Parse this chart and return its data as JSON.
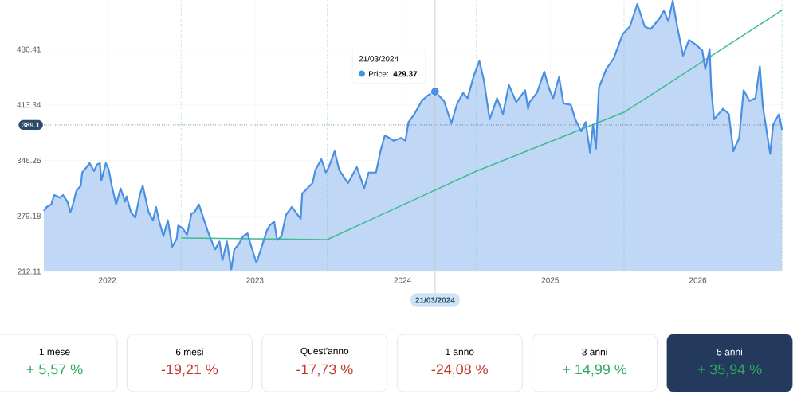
{
  "chart_data": [
    {
      "type": "area",
      "xlim": [
        2021.57,
        2026.58
      ],
      "ylim": [
        212.11,
        540
      ],
      "xticks": [
        2022,
        2023,
        2024,
        2025,
        2026
      ],
      "yticks": [
        212.11,
        279.18,
        346.26,
        413.34,
        480.41
      ],
      "grid": true,
      "marker": "none",
      "series": [
        {
          "name": "Price:",
          "color": "#4a90e2",
          "x": [
            2021.57,
            2021.59,
            2021.62,
            2021.64,
            2021.68,
            2021.7,
            2021.73,
            2021.75,
            2021.77,
            2021.79,
            2021.82,
            2021.83,
            2021.86,
            2021.88,
            2021.91,
            2021.93,
            2021.95,
            2021.96,
            2021.99,
            2022.01,
            2022.03,
            2022.06,
            2022.09,
            2022.12,
            2022.13,
            2022.16,
            2022.19,
            2022.22,
            2022.24,
            2022.26,
            2022.28,
            2022.31,
            2022.33,
            2022.35,
            2022.38,
            2022.41,
            2022.44,
            2022.47,
            2022.48,
            2022.51,
            2022.54,
            2022.57,
            2022.59,
            2022.62,
            2022.65,
            2022.68,
            2022.7,
            2022.73,
            2022.76,
            2022.78,
            2022.81,
            2022.84,
            2022.86,
            2022.89,
            2022.92,
            2022.95,
            2022.97,
            2023.01,
            2023.04,
            2023.08,
            2023.1,
            2023.13,
            2023.15,
            2023.18,
            2023.21,
            2023.25,
            2023.31,
            2023.32,
            2023.39,
            2023.41,
            2023.45,
            2023.48,
            2023.5,
            2023.54,
            2023.57,
            2023.63,
            2023.69,
            2023.74,
            2023.77,
            2023.82,
            2023.85,
            2023.88,
            2023.94,
            2023.99,
            2024.02,
            2024.04,
            2024.08,
            2024.13,
            2024.17,
            2024.22,
            2024.28,
            2024.31,
            2024.33,
            2024.37,
            2024.41,
            2024.44,
            2024.48,
            2024.52,
            2024.55,
            2024.59,
            2024.64,
            2024.68,
            2024.72,
            2024.77,
            2024.83,
            2024.85,
            2024.86,
            2024.91,
            2024.96,
            2024.99,
            2025.02,
            2025.06,
            2025.09,
            2025.14,
            2025.17,
            2025.21,
            2025.24,
            2025.27,
            2025.29,
            2025.31,
            2025.33,
            2025.38,
            2025.43,
            2025.49,
            2025.54,
            2025.59,
            2025.64,
            2025.68,
            2025.74,
            2025.77,
            2025.8,
            2025.83,
            2025.86,
            2025.9,
            2025.94,
            2025.99,
            2026.03,
            2026.05,
            2026.08,
            2026.09,
            2026.11,
            2026.17,
            2026.21,
            2026.24,
            2026.28,
            2026.31,
            2026.35,
            2026.39,
            2026.42,
            2026.44,
            2026.49,
            2026.51,
            2026.55,
            2026.57
          ],
          "values": [
            285.2,
            290.0,
            293.2,
            304.4,
            301.2,
            304.4,
            296.4,
            283.6,
            294.8,
            309.2,
            315.7,
            331.6,
            338.1,
            342.9,
            333.3,
            341.2,
            342.9,
            322.0,
            342.9,
            334.9,
            315.7,
            293.2,
            312.4,
            296.4,
            302.8,
            283.6,
            277.2,
            304.4,
            315.7,
            299.6,
            283.6,
            273.9,
            290.0,
            273.9,
            254.7,
            273.9,
            241.9,
            251.5,
            267.6,
            264.3,
            256.3,
            282.0,
            283.6,
            293.2,
            277.2,
            261.1,
            251.5,
            238.7,
            248.3,
            225.8,
            248.3,
            214.7,
            238.7,
            245.1,
            254.7,
            258.0,
            245.1,
            222.7,
            238.7,
            261.1,
            267.6,
            272.4,
            249.9,
            254.7,
            280.4,
            290.0,
            275.6,
            306.0,
            318.8,
            334.9,
            347.7,
            331.6,
            338.1,
            357.3,
            334.9,
            318.8,
            338.1,
            312.4,
            331.6,
            331.6,
            357.3,
            376.5,
            370.1,
            373.4,
            370.1,
            392.6,
            402.2,
            418.2,
            424.6,
            429.37,
            418.2,
            402.2,
            391.0,
            415.0,
            427.8,
            421.4,
            447.0,
            466.2,
            443.8,
            395.8,
            421.4,
            402.2,
            437.4,
            416.6,
            431.0,
            408.6,
            416.6,
            427.8,
            453.5,
            434.2,
            421.4,
            447.0,
            415.0,
            413.4,
            395.8,
            381.3,
            392.6,
            355.7,
            389.3,
            360.5,
            434.2,
            456.6,
            469.5,
            498.4,
            508.0,
            535.2,
            508.0,
            504.7,
            517.6,
            527.2,
            514.3,
            539.0,
            508.0,
            472.7,
            491.9,
            485.5,
            479.1,
            456.6,
            480.7,
            434.2,
            395.8,
            408.6,
            402.2,
            357.3,
            373.4,
            431.0,
            418.2,
            421.4,
            459.9,
            411.8,
            354.1,
            389.3,
            402.2,
            383.0
          ]
        },
        {
          "type": "line",
          "color": "#3dbb92",
          "x": [
            2022.5,
            2023.49,
            2024.5,
            2025.5,
            2026.57
          ],
          "values": [
            252.5,
            250.6,
            333.3,
            404.4,
            527.5
          ]
        }
      ],
      "ref_lines": [
        {
          "axis": "y",
          "value": 389.1,
          "label": "389.1",
          "color": "#2c4a6b",
          "line_style": "dotted"
        },
        {
          "axis": "x",
          "value": 2022.5,
          "color": "#5cc9a7",
          "line_style": "dotted"
        },
        {
          "axis": "x",
          "value": 2023.49,
          "color": "#5cc9a7",
          "line_style": "dotted"
        },
        {
          "axis": "x",
          "value": 2024.5,
          "color": "#5cc9a7",
          "line_style": "dotted"
        },
        {
          "axis": "x",
          "value": 2025.5,
          "color": "#5cc9a7",
          "line_style": "dotted"
        },
        {
          "axis": "x",
          "value": 2026.57,
          "color": "#5cc9a7",
          "line_style": "dotted"
        },
        {
          "axis": "x",
          "value": 2024.22,
          "label": "21/03/2024",
          "color": "#c8c8c8",
          "line_style": "solid"
        }
      ],
      "annotations": [
        "21/03/2024",
        {
          "text": "429.37",
          "x": 2024.22,
          "y": 429.37
        }
      ]
    },
    {
      "type": "other",
      "categories": [
        "1 mese",
        "6 mesi",
        "Quest'anno",
        "1 anno",
        "3 anni",
        "5 anni"
      ],
      "values": [
        5.57,
        -19.21,
        -17.73,
        -24.08,
        14.99,
        35.94
      ],
      "value_labels": [
        "+ 5,57 %",
        "-19,21 %",
        "-17,73 %",
        "-24,08 %",
        "+ 14,99 %",
        "+ 35,94 %"
      ],
      "colors": [
        "#ffffff",
        "#ffffff",
        "#ffffff",
        "#ffffff",
        "#ffffff",
        "#243a5c"
      ]
    }
  ]
}
